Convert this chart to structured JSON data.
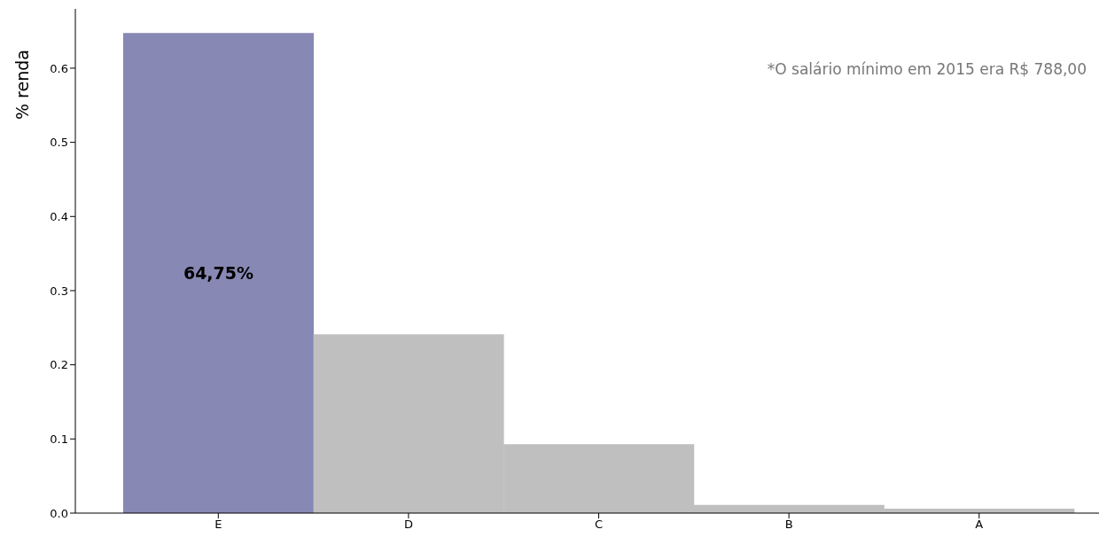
{
  "chart_data": {
    "type": "bar",
    "ylabel": "% renda",
    "categories": [
      "E",
      "D",
      "C",
      "B",
      "A"
    ],
    "values": [
      0.6475,
      0.241,
      0.093,
      0.011,
      0.006
    ],
    "colors": [
      "#8888b5",
      "#bfbfbf",
      "#bfbfbf",
      "#bfbfbf",
      "#bfbfbf"
    ],
    "value_labels": [
      "64,75%",
      null,
      null,
      null,
      null
    ],
    "ylim": [
      0,
      0.68
    ],
    "yticks": [
      {
        "value": 0,
        "label": "0.0"
      },
      0.1,
      0.2,
      0.3,
      0.4,
      0.5,
      0.6
    ],
    "annotations": [
      "*O salário mínimo em 2015 era R$ 788,00"
    ]
  }
}
